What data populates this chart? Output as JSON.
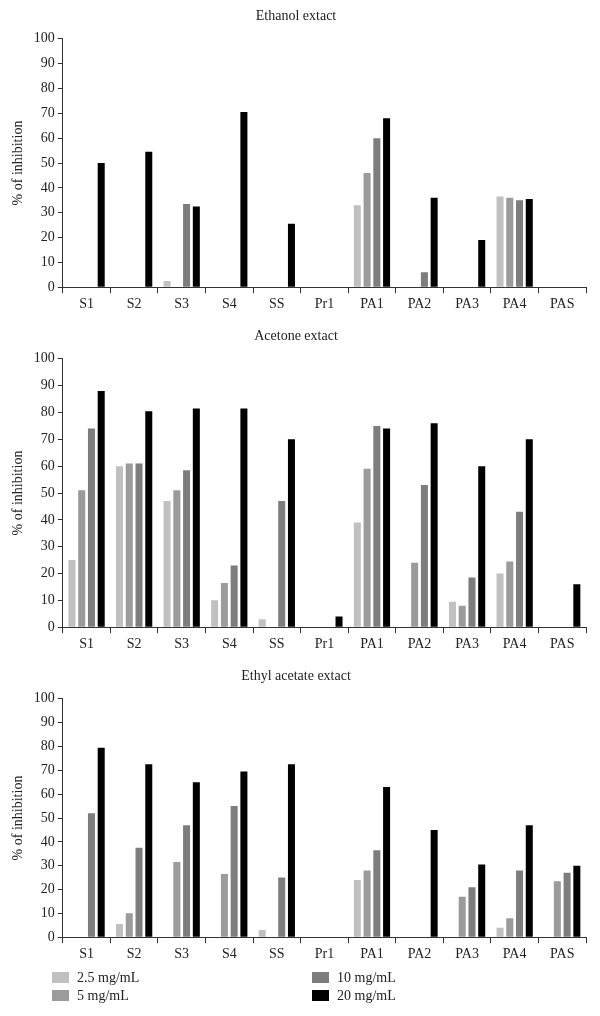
{
  "chart_data": [
    {
      "type": "bar",
      "title": "Ethanol extact",
      "ylabel": "% of inhibition",
      "categories": [
        "S1",
        "S2",
        "S3",
        "S4",
        "SS",
        "Pr1",
        "PA1",
        "PA2",
        "PA3",
        "PA4",
        "PAS"
      ],
      "series": [
        {
          "color": "#c0c0c0",
          "values": [
            0,
            0,
            2.5,
            0,
            0,
            0,
            33,
            0,
            0,
            36.5,
            0
          ]
        },
        {
          "color": "#9b9b9b",
          "values": [
            0,
            0,
            0,
            0,
            0,
            0,
            46,
            0,
            0,
            36,
            0
          ]
        },
        {
          "color": "#7d7d7d",
          "values": [
            0,
            0,
            33.5,
            0,
            0,
            0,
            60,
            6,
            0,
            35,
            0
          ]
        },
        {
          "color": "#000000",
          "values": [
            50,
            54.5,
            32.5,
            70.5,
            25.5,
            0,
            68,
            36,
            19,
            35.5,
            0
          ]
        }
      ],
      "ylim": [
        0,
        100
      ],
      "yticks": [
        0,
        10,
        20,
        30,
        40,
        50,
        60,
        70,
        80,
        90,
        100
      ],
      "grid": false,
      "legend": false
    },
    {
      "type": "bar",
      "title": "Acetone extact",
      "ylabel": "% of inhibition",
      "categories": [
        "S1",
        "S2",
        "S3",
        "S4",
        "SS",
        "Pr1",
        "PA1",
        "PA2",
        "PA3",
        "PA4",
        "PAS"
      ],
      "series": [
        {
          "color": "#c0c0c0",
          "values": [
            25,
            60,
            47,
            10,
            3,
            0,
            39,
            0,
            9.5,
            20,
            0
          ]
        },
        {
          "color": "#9b9b9b",
          "values": [
            51,
            61,
            51,
            16.5,
            0,
            0,
            59,
            24,
            8,
            24.5,
            0
          ]
        },
        {
          "color": "#7d7d7d",
          "values": [
            74,
            61,
            58.5,
            23,
            47,
            0,
            75,
            53,
            18.5,
            43,
            0
          ]
        },
        {
          "color": "#000000",
          "values": [
            88,
            80.5,
            81.5,
            81.5,
            70,
            4,
            74,
            76,
            60,
            70,
            16
          ]
        }
      ],
      "ylim": [
        0,
        100
      ],
      "yticks": [
        0,
        10,
        20,
        30,
        40,
        50,
        60,
        70,
        80,
        90,
        100
      ],
      "grid": false,
      "legend": false
    },
    {
      "type": "bar",
      "title": "Ethyl acetate extact",
      "ylabel": "% of inhibition",
      "categories": [
        "S1",
        "S2",
        "S3",
        "S4",
        "SS",
        "Pr1",
        "PA1",
        "PA2",
        "PA3",
        "PA4",
        "PAS"
      ],
      "series": [
        {
          "name": "2.5 mg/mL",
          "color": "#c0c0c0",
          "values": [
            0,
            5.5,
            0,
            0,
            3,
            0,
            24,
            0,
            0,
            4,
            0
          ]
        },
        {
          "name": "5 mg/mL",
          "color": "#9b9b9b",
          "values": [
            0,
            10,
            31.5,
            26.5,
            0,
            0,
            28,
            0,
            17,
            8,
            23.5
          ]
        },
        {
          "name": "10 mg/mL",
          "color": "#7d7d7d",
          "values": [
            52,
            37.5,
            47,
            55,
            25,
            0,
            36.5,
            0,
            21,
            28,
            27
          ]
        },
        {
          "name": "20 mg/mL",
          "color": "#000000",
          "values": [
            79.5,
            72.5,
            65,
            69.5,
            72.5,
            0,
            63,
            45,
            30.5,
            47,
            30
          ]
        }
      ],
      "ylim": [
        0,
        100
      ],
      "yticks": [
        0,
        10,
        20,
        30,
        40,
        50,
        60,
        70,
        80,
        90,
        100
      ],
      "grid": false,
      "legend": "bottom"
    }
  ]
}
